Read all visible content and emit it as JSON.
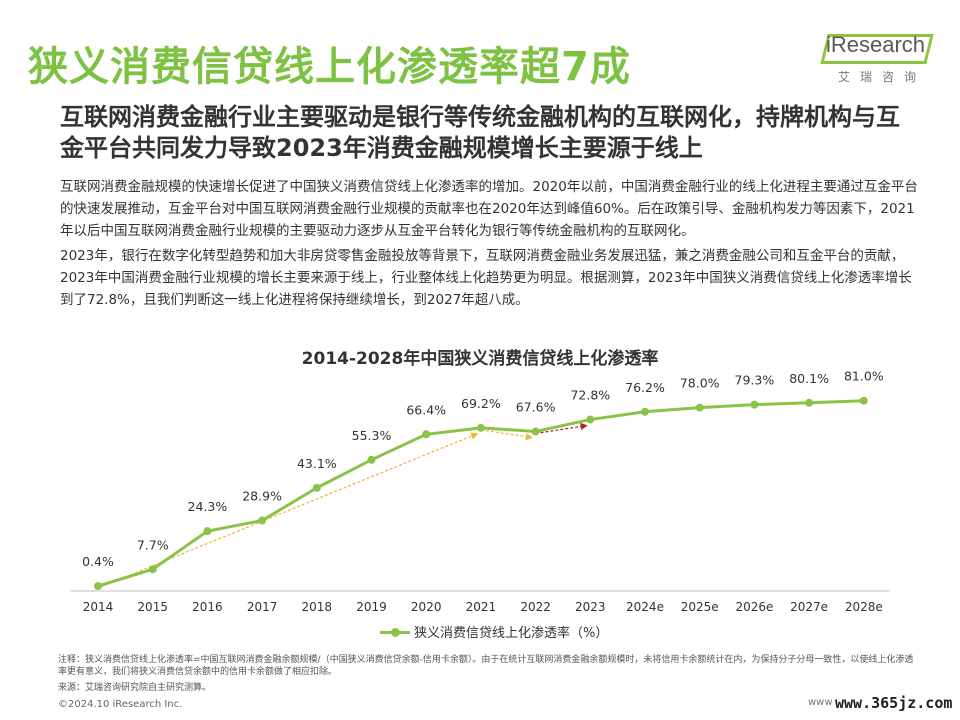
{
  "page": {
    "title": "狭义消费信贷线上化渗透率超7成",
    "subtitle": "互联网消费金融行业主要驱动是银行等传统金融机构的互联网化，持牌机构与互金平台共同发力导致2023年消费金融规模增长主要源于线上",
    "paragraphs": [
      "互联网消费金融规模的快速增长促进了中国狭义消费信贷线上化渗透率的增加。2020年以前，中国消费金融行业的线上化进程主要通过互金平台的快速发展推动，互金平台对中国互联网消费金融行业规模的贡献率也在2020年达到峰值60%。后在政策引导、金融机构发力等因素下，2021年以后中国互联网消费金融行业规模的主要驱动力逐步从互金平台转化为银行等传统金融机构的互联网化。",
      "2023年，银行在数字化转型趋势和加大非房贷零售金融投放等背景下，互联网消费金融业务发展迅猛，兼之消费金融公司和互金平台的贡献，2023年中国消费金融行业规模的增长主要来源于线上，行业整体线上化趋势更为明显。根据测算，2023年中国狭义消费信贷线上化渗透率增长到了72.8%，且我们判断这一线上化进程将保持继续增长，到2027年超八成。"
    ],
    "note": "注释：狭义消费信贷线上化渗透率=中国互联网消费金融余额规模/（中国狭义消费信贷余额-信用卡余额）。由于在统计互联网消费金融余额规模时，未将信用卡余额统计在内，为保持分子分母一致性，以使线上化渗透率更有意义，我们将狭义消费信贷余额中的信用卡余额做了相应扣除。",
    "source": "来源：艾瑞咨询研究院自主研究测算。",
    "copyright": "©2024.10 iResearch Inc.",
    "website": "www.ire",
    "watermark": "www.365jz.com"
  },
  "logo": {
    "name": "iResearch",
    "subtitle": "艾瑞咨询"
  },
  "chart_data": {
    "type": "line",
    "title": "2014-2028年中国狭义消费信贷线上化渗透率",
    "categories": [
      "2014",
      "2015",
      "2016",
      "2017",
      "2018",
      "2019",
      "2020",
      "2021",
      "2022",
      "2023",
      "2024e",
      "2025e",
      "2026e",
      "2027e",
      "2028e"
    ],
    "series": [
      {
        "name": "狭义消费信贷线上化渗透率（%）",
        "values": [
          0.4,
          7.7,
          24.3,
          28.9,
          43.1,
          55.3,
          66.4,
          69.2,
          67.6,
          72.8,
          76.2,
          78.0,
          79.3,
          80.1,
          81.0
        ],
        "labels": [
          "0.4%",
          "7.7%",
          "24.3%",
          "28.9%",
          "43.1%",
          "55.3%",
          "66.4%",
          "69.2%",
          "67.6%",
          "72.8%",
          "76.2%",
          "78.0%",
          "79.3%",
          "80.1%",
          "81.0%"
        ]
      }
    ],
    "trend_arrows": [
      {
        "from": "2014",
        "to": "2021",
        "color": "#f2b233"
      },
      {
        "from": "2021",
        "to": "2022",
        "color": "#f2b233"
      },
      {
        "from": "2022",
        "to": "2023",
        "color": "#b22222"
      }
    ],
    "ylim": [
      0,
      90
    ],
    "colors": {
      "line": "#8bc34a",
      "point": "#8bc34a"
    },
    "grid": false,
    "legend_position": "bottom"
  }
}
